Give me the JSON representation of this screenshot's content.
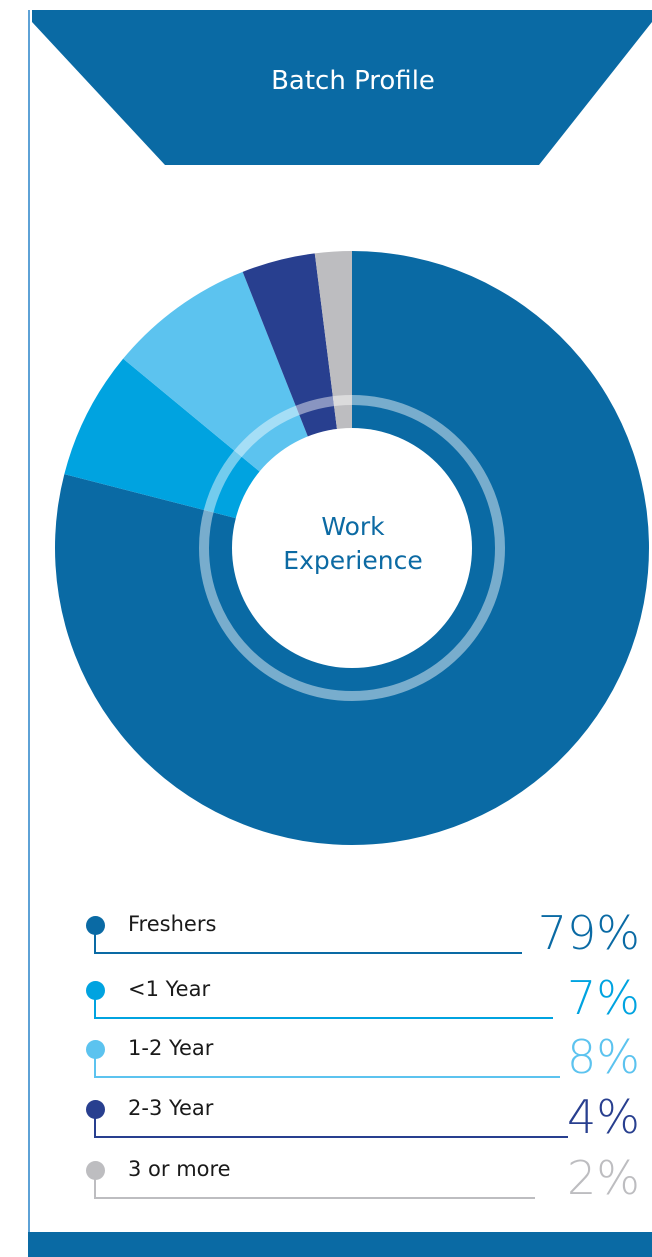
{
  "header": {
    "title": "Batch Profile"
  },
  "center_label": {
    "line1": "Work",
    "line2": "Experience"
  },
  "colors": {
    "header_bg": "#0a6aa4",
    "freshers": "#0a6aa4",
    "lt1": "#00a3e0",
    "y1_2": "#5cc3ef",
    "y2_3": "#283f8f",
    "y3plus": "#bdbdc0"
  },
  "chart_data": {
    "type": "pie",
    "title": "Work Experience",
    "categories": [
      "Freshers",
      "<1 Year",
      "1-2 Year",
      "2-3 Year",
      "3 or more"
    ],
    "values": [
      79,
      7,
      8,
      4,
      2
    ],
    "value_labels": [
      "79%",
      "7%",
      "8%",
      "4%",
      "2%"
    ]
  }
}
